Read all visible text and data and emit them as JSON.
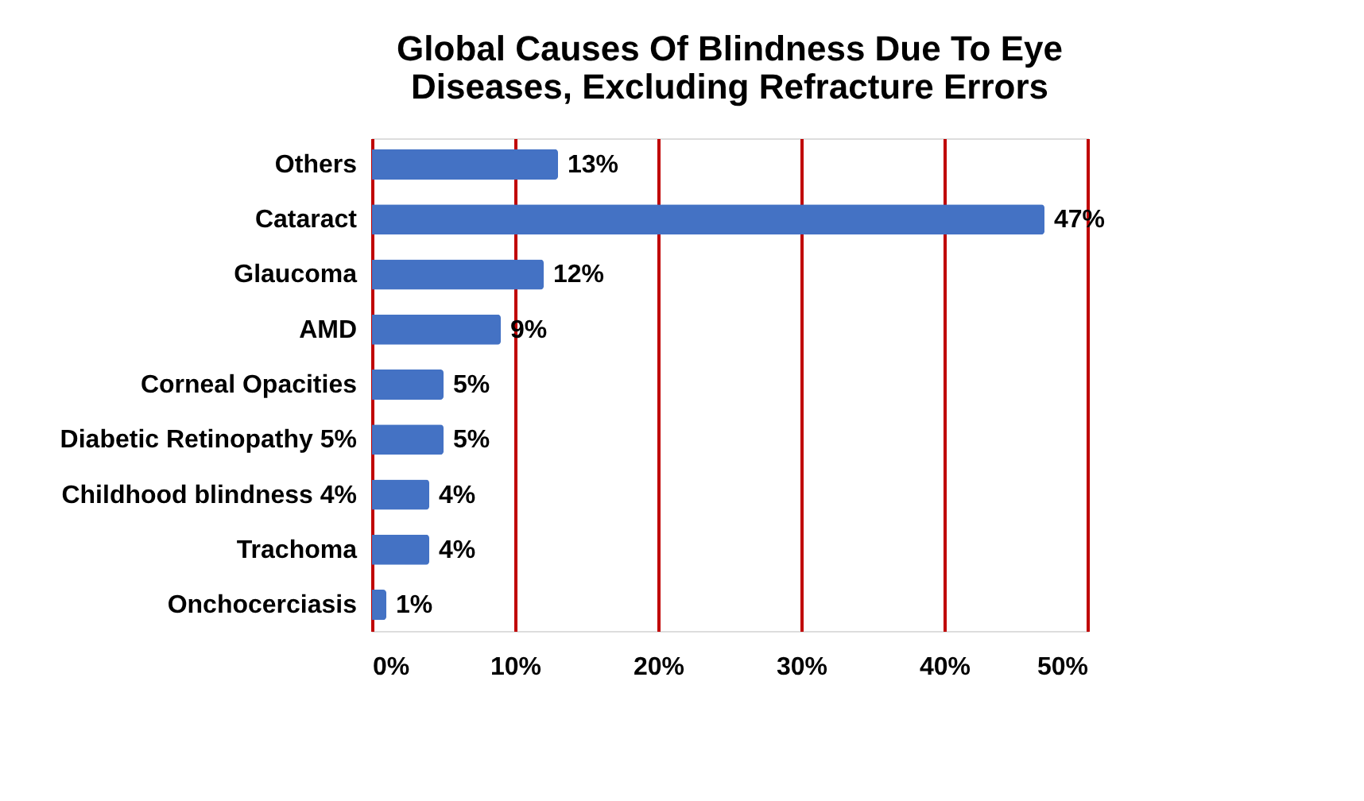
{
  "chart_data": {
    "type": "bar",
    "orientation": "horizontal",
    "title": [
      "Global Causes Of Blindness Due To Eye",
      "Diseases, Excluding Refracture Errors"
    ],
    "categories": [
      "Others",
      "Cataract",
      "Glaucoma ",
      "AMD",
      "Corneal  Opacities",
      "Diabetic Retinopathy 5%",
      "Childhood blindness     4%",
      "Trachoma",
      "Onchocerciasis"
    ],
    "values": [
      13,
      47,
      12,
      9,
      5,
      5,
      4,
      4,
      1
    ],
    "value_labels": [
      "13%",
      "47%",
      "12%",
      "9%",
      "5%",
      "5%",
      "4%",
      "4%",
      "1%"
    ],
    "color": "#4472c4",
    "xlim": [
      0,
      50
    ],
    "xticks": [
      {
        "value": 0,
        "label": "0%"
      },
      {
        "value": 10,
        "label": "10%"
      },
      {
        "value": 20,
        "label": "20%"
      },
      {
        "value": 30,
        "label": "30%"
      },
      {
        "value": 40,
        "label": "40%"
      },
      {
        "value": 50,
        "label": "50%"
      }
    ],
    "grid": "x"
  }
}
